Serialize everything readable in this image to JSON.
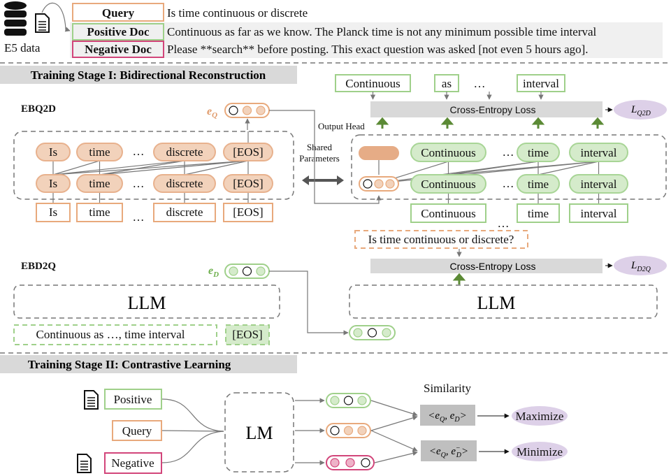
{
  "colors": {
    "query": "#e8a97c",
    "positive": "#9fd08a",
    "negative": "#d2457a",
    "loss": "#ddd0e8",
    "arrow_green": "#5b8a35",
    "header_gray": "#d9d9d9"
  },
  "top": {
    "source_label": "E5 data",
    "icons": [
      "database-icon",
      "document-icon"
    ],
    "query": {
      "label": "Query",
      "text": "Is time continuous or discrete"
    },
    "positive": {
      "label": "Positive Doc",
      "text": "Continuous as far as we know. The Planck time is not any minimum possible time interval"
    },
    "negative": {
      "label": "Negative Doc",
      "text": "Please **search** before posting. This exact question was asked [not even 5 hours ago]."
    }
  },
  "stage1": {
    "header": "Training Stage I: Bidirectional Reconstruction",
    "ebq2d": {
      "label": "EBQ2D",
      "embed": "e",
      "embed_sub": "Q",
      "tokens": [
        "Is",
        "time",
        "…",
        "discrete",
        "[EOS]"
      ],
      "inputs": [
        "Is",
        "time",
        "…",
        "discrete",
        "[EOS]"
      ]
    },
    "shared": [
      "Shared",
      "Parameters"
    ],
    "output_head": "Output Head",
    "decoder": {
      "tokens": [
        "Continuous",
        "…",
        "time",
        "interval"
      ],
      "inputs": [
        "Continuous",
        "…",
        "time",
        "interval"
      ],
      "targets": [
        "Continuous",
        "as",
        "…",
        "interval"
      ],
      "loss": "Cross-Entropy Loss",
      "loss_name": "L",
      "loss_sub": "Q2D"
    },
    "ebd2q": {
      "label": "EBD2Q",
      "embed": "e",
      "embed_sub": "D",
      "llm": "LLM",
      "input_text": "Continuous as …, time interval",
      "eos": "[EOS]",
      "target": "Is time continuous or discrete?",
      "loss": "Cross-Entropy Loss",
      "loss_name": "L",
      "loss_sub": "D2Q",
      "llm_right": "LLM"
    }
  },
  "stage2": {
    "header": "Training Stage II: Contrastive Learning",
    "inputs": [
      "Positive",
      "Query",
      "Negative"
    ],
    "model": "LM",
    "similarity": "Similarity",
    "sim_pos": {
      "pre": "<e",
      "sub1": "Q",
      "mid": ", e",
      "sub2": "D",
      "post": ">"
    },
    "sim_neg": {
      "pre": "<e",
      "sub1": "Q",
      "mid": ", e",
      "sup2": "−",
      "sub2": "D",
      "post": ">"
    },
    "outcomes": [
      "Maximize",
      "Minimize"
    ]
  }
}
